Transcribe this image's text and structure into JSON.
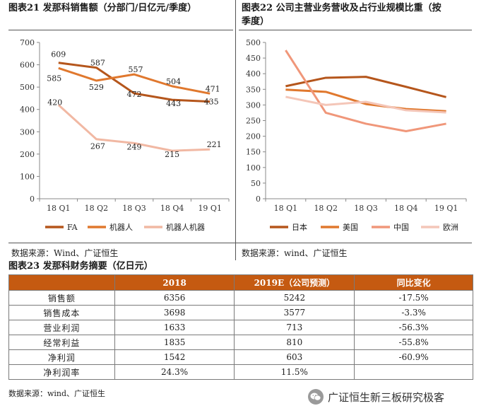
{
  "panel1": {
    "title": "图表21  发那科销售额（分部门/日亿元/季度）",
    "source": "数据来源：Wind、广证恒生"
  },
  "panel2": {
    "title_line1": "图表22   公司主营业务营收及占行业规模比重（按",
    "title_line2": "季度）",
    "source": "数据来源：wind、广证恒生"
  },
  "table_section": {
    "title": "图表23   发那科财务摘要（亿日元）",
    "headers": [
      "",
      "2018",
      "2019E（公司预测）",
      "同比变化"
    ],
    "rows": [
      {
        "label": "销售额",
        "v2018": "6356",
        "v2019": "5242",
        "change": "-17.5%"
      },
      {
        "label": "销售成本",
        "v2018": "3698",
        "v2019": "3577",
        "change": "-3.3%"
      },
      {
        "label": "营业利润",
        "v2018": "1633",
        "v2019": "713",
        "change": "-56.3%"
      },
      {
        "label": "经常利益",
        "v2018": "1835",
        "v2019": "810",
        "change": "-55.8%"
      },
      {
        "label": "净利润",
        "v2018": "1542",
        "v2019": "603",
        "change": "-60.9%"
      },
      {
        "label": "净利润率",
        "v2018": "24.3%",
        "v2019": "11.5%",
        "change": ""
      }
    ],
    "source": "数据来源：wind、广证恒生"
  },
  "watermark": {
    "text": "广证恒生新三板研究极客",
    "icon": "wechat-icon"
  },
  "chart_data": [
    {
      "type": "line",
      "categories": [
        "18 Q1",
        "18 Q2",
        "18 Q3",
        "18 Q4",
        "19 Q1"
      ],
      "ylim": [
        0,
        700
      ],
      "yticks": [
        "0",
        "100",
        "200",
        "300",
        "400",
        "500",
        "600",
        "700"
      ],
      "grid": false,
      "legend": "bottom",
      "series": [
        {
          "name": "FA",
          "color": "#b5561c",
          "values": [
            609,
            587,
            472,
            443,
            435
          ],
          "labels": [
            "609",
            "587",
            "472",
            "443",
            "435"
          ]
        },
        {
          "name": "机器人",
          "color": "#e0782e",
          "values": [
            585,
            529,
            557,
            504,
            471
          ],
          "labels": [
            "585",
            "529",
            "557",
            "504",
            "471"
          ]
        },
        {
          "name": "机器人机器",
          "color": "#f1b8a3",
          "values": [
            420,
            267,
            249,
            215,
            221
          ],
          "labels": [
            "420",
            "267",
            "249",
            "215",
            "221"
          ]
        }
      ]
    },
    {
      "type": "line",
      "categories": [
        "18 Q1",
        "18 Q2",
        "18 Q3",
        "18 Q4",
        "19 Q1"
      ],
      "ylim": [
        0,
        500
      ],
      "yticks": [
        "0",
        "50",
        "100",
        "150",
        "200",
        "250",
        "300",
        "350",
        "400",
        "450",
        "500"
      ],
      "grid": false,
      "legend": "bottom",
      "series": [
        {
          "name": "日本",
          "color": "#b5561c",
          "values": [
            360,
            387,
            390,
            358,
            325
          ]
        },
        {
          "name": "美国",
          "color": "#e0782e",
          "values": [
            349,
            342,
            303,
            287,
            280
          ]
        },
        {
          "name": "中国",
          "color": "#f0977a",
          "values": [
            475,
            275,
            240,
            216,
            240
          ]
        },
        {
          "name": "欧洲",
          "color": "#f4c6b8",
          "values": [
            326,
            300,
            310,
            283,
            276
          ]
        }
      ]
    }
  ]
}
